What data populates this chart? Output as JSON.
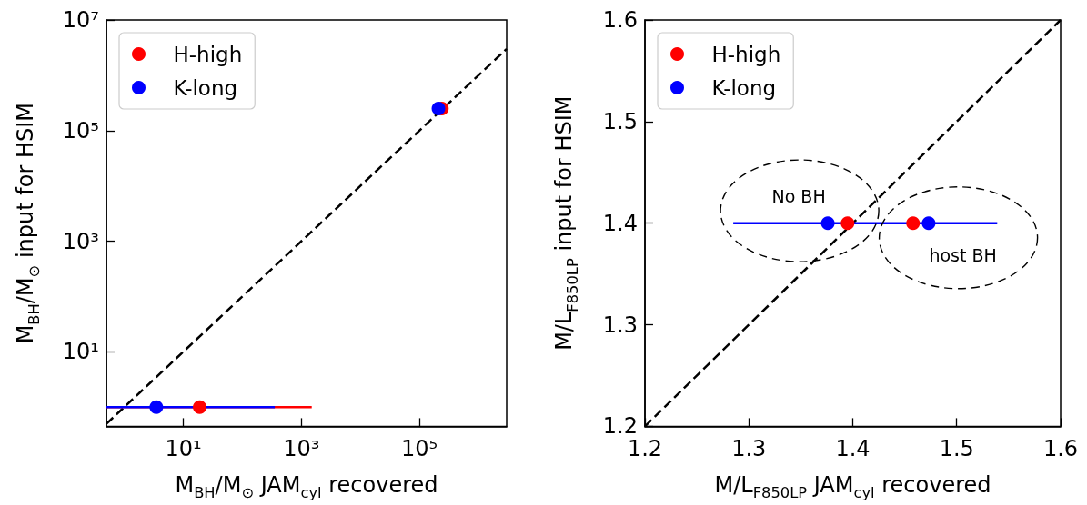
{
  "chart_data": [
    {
      "type": "scatter",
      "xlabel": "M$_{BH}$/M$_{⊙}$ JAM$_{cyl}$ recovered",
      "ylabel": "M$_{BH}$/M$_{⊙}$ input for HSIM",
      "log": "xy",
      "xlim": [
        0.5,
        3000000
      ],
      "ylim": [
        0.45,
        10000000
      ],
      "xticks": [
        {
          "value": 10,
          "label": "10¹"
        },
        {
          "value": 1000,
          "label": "10³"
        },
        {
          "value": 100000,
          "label": "10⁵"
        }
      ],
      "yticks": [
        {
          "value": 10,
          "label": "10¹"
        },
        {
          "value": 1000,
          "label": "10³"
        },
        {
          "value": 100000,
          "label": "10⁵"
        },
        {
          "value": 10000000,
          "label": "10⁷"
        }
      ],
      "legend": "top left",
      "marker": "circle",
      "series": [
        {
          "name": "H-high",
          "color": "#ff0000",
          "x": [
            19,
            240000
          ],
          "values": [
            1,
            250000
          ],
          "xerrors": [
            [
              0.5,
              1500
            ],
            null
          ]
        },
        {
          "name": "K-long",
          "color": "#0000ff",
          "x": [
            3.5,
            210000
          ],
          "values": [
            1,
            250000
          ],
          "xerrors": [
            [
              0.5,
              355
            ],
            null
          ]
        },
        {
          "type": "line",
          "color": "#000000",
          "line_style": "dashed",
          "marker": "none",
          "x": [
            0.5,
            3000000
          ],
          "values": [
            0.5,
            3000000
          ]
        }
      ]
    },
    {
      "type": "scatter",
      "xlabel": "M/L$_{F850LP}$ JAM$_{cyl}$ recovered",
      "ylabel": "M/L$_{F850LP}$ input for HSIM",
      "xlim": [
        1.2,
        1.6
      ],
      "ylim": [
        1.2,
        1.6
      ],
      "xticks": [
        1.2,
        1.3,
        1.4,
        1.5,
        1.6
      ],
      "yticks": [
        1.2,
        1.3,
        1.4,
        1.5,
        1.6
      ],
      "legend": "top left",
      "marker": "circle",
      "annotations": [
        "No BH",
        "host BH"
      ],
      "series": [
        {
          "name": "H-high",
          "color": "#ff0000",
          "x": [
            1.395,
            1.458
          ],
          "values": [
            1.4,
            1.4
          ]
        },
        {
          "name": "K-long",
          "color": "#0000ff",
          "x": [
            1.376,
            1.473
          ],
          "values": [
            1.4,
            1.4
          ],
          "xerrors": [
            [
              1.285,
              1.539
            ],
            null
          ]
        },
        {
          "type": "line",
          "color": "#000000",
          "line_style": "dashed",
          "marker": "none",
          "x": [
            1.2,
            1.6
          ],
          "values": [
            1.2,
            1.6
          ]
        }
      ]
    }
  ]
}
